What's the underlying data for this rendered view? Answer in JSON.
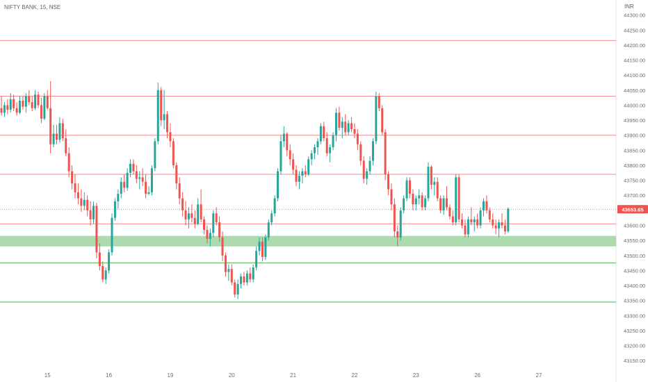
{
  "header": {
    "title": "NIFTY BANK, 15, NSE",
    "currency": "INR"
  },
  "colors": {
    "up": "#26a69a",
    "down": "#ef5350",
    "resistance": "#f28b8b",
    "support": "#4caf50",
    "zone": "#a5d6a7",
    "price_badge": "#ef5350",
    "axis_text": "#6a6d78"
  },
  "chart_data": {
    "type": "candlestick",
    "title": "NIFTY BANK, 15, NSE",
    "ylim": [
      43125,
      44350
    ],
    "y_ticks": [
      43150,
      43200,
      43250,
      43300,
      43350,
      43400,
      43450,
      43500,
      43550,
      43600,
      43650,
      43700,
      43750,
      43800,
      43850,
      43900,
      43950,
      44000,
      44050,
      44100,
      44150,
      44200,
      44250,
      44300
    ],
    "x_range": [
      0,
      187
    ],
    "x_ticks": [
      {
        "label": "15",
        "bar": 15
      },
      {
        "label": "16",
        "bar": 35
      },
      {
        "label": "19",
        "bar": 55
      },
      {
        "label": "20",
        "bar": 75
      },
      {
        "label": "21",
        "bar": 95
      },
      {
        "label": "22",
        "bar": 115
      },
      {
        "label": "23",
        "bar": 135
      },
      {
        "label": "26",
        "bar": 155
      },
      {
        "label": "27",
        "bar": 175
      }
    ],
    "current_price": 43653.65,
    "current_price_label": "43653.65",
    "resistance_levels": [
      44215,
      44030,
      43900,
      43770,
      43605
    ],
    "support_zone": [
      43530,
      43565
    ],
    "support_levels": [
      43475,
      43345
    ],
    "candles": [
      [
        43990,
        44030,
        43965,
        43975
      ],
      [
        43975,
        44010,
        43960,
        44000
      ],
      [
        44000,
        44020,
        43970,
        43985
      ],
      [
        43985,
        44040,
        43975,
        44020
      ],
      [
        44020,
        44035,
        43980,
        43990
      ],
      [
        43990,
        44010,
        43965,
        43975
      ],
      [
        43975,
        44030,
        43970,
        44015
      ],
      [
        44015,
        44030,
        43985,
        43995
      ],
      [
        43995,
        44040,
        43975,
        44030
      ],
      [
        44030,
        44050,
        44000,
        44010
      ],
      [
        44010,
        44030,
        43980,
        43990
      ],
      [
        43990,
        44050,
        43985,
        44035
      ],
      [
        44035,
        44045,
        43990,
        44000
      ],
      [
        44000,
        44025,
        43940,
        43955
      ],
      [
        43955,
        44040,
        43950,
        44030
      ],
      [
        44030,
        44050,
        43985,
        43990
      ],
      [
        43990,
        44080,
        43840,
        43870
      ],
      [
        43870,
        43935,
        43860,
        43905
      ],
      [
        43905,
        43935,
        43870,
        43885
      ],
      [
        43885,
        43960,
        43875,
        43940
      ],
      [
        43940,
        43955,
        43880,
        43890
      ],
      [
        43890,
        43920,
        43830,
        43840
      ],
      [
        43840,
        43860,
        43760,
        43780
      ],
      [
        43780,
        43800,
        43720,
        43740
      ],
      [
        43740,
        43770,
        43690,
        43710
      ],
      [
        43710,
        43740,
        43670,
        43690
      ],
      [
        43690,
        43720,
        43645,
        43665
      ],
      [
        43665,
        43710,
        43650,
        43685
      ],
      [
        43685,
        43700,
        43630,
        43650
      ],
      [
        43650,
        43680,
        43600,
        43620
      ],
      [
        43620,
        43680,
        43605,
        43665
      ],
      [
        43665,
        43675,
        43490,
        43510
      ],
      [
        43510,
        43540,
        43450,
        43465
      ],
      [
        43465,
        43480,
        43410,
        43420
      ],
      [
        43420,
        43460,
        43405,
        43450
      ],
      [
        43450,
        43520,
        43440,
        43510
      ],
      [
        43510,
        43640,
        43500,
        43625
      ],
      [
        43625,
        43690,
        43615,
        43680
      ],
      [
        43680,
        43720,
        43655,
        43705
      ],
      [
        43705,
        43760,
        43690,
        43745
      ],
      [
        43745,
        43770,
        43710,
        43725
      ],
      [
        43725,
        43790,
        43715,
        43775
      ],
      [
        43775,
        43820,
        43760,
        43805
      ],
      [
        43805,
        43820,
        43770,
        43780
      ],
      [
        43780,
        43800,
        43740,
        43755
      ],
      [
        43755,
        43780,
        43720,
        43760
      ],
      [
        43760,
        43790,
        43730,
        43745
      ],
      [
        43745,
        43770,
        43690,
        43705
      ],
      [
        43705,
        43730,
        43700,
        43710
      ],
      [
        43710,
        43800,
        43700,
        43790
      ],
      [
        43790,
        43890,
        43780,
        43880
      ],
      [
        43880,
        44075,
        43870,
        44050
      ],
      [
        44050,
        44060,
        43930,
        43950
      ],
      [
        43950,
        44050,
        43920,
        43970
      ],
      [
        43970,
        43980,
        43890,
        43910
      ],
      [
        43910,
        43940,
        43860,
        43880
      ],
      [
        43880,
        43890,
        43790,
        43800
      ],
      [
        43800,
        43810,
        43720,
        43740
      ],
      [
        43740,
        43760,
        43670,
        43690
      ],
      [
        43690,
        43710,
        43630,
        43650
      ],
      [
        43650,
        43680,
        43600,
        43620
      ],
      [
        43620,
        43660,
        43590,
        43640
      ],
      [
        43640,
        43670,
        43610,
        43625
      ],
      [
        43625,
        43650,
        43590,
        43605
      ],
      [
        43605,
        43690,
        43600,
        43670
      ],
      [
        43670,
        43720,
        43610,
        43620
      ],
      [
        43620,
        43630,
        43570,
        43585
      ],
      [
        43585,
        43600,
        43540,
        43555
      ],
      [
        43555,
        43590,
        43530,
        43575
      ],
      [
        43575,
        43650,
        43560,
        43640
      ],
      [
        43640,
        43660,
        43600,
        43610
      ],
      [
        43610,
        43630,
        43545,
        43560
      ],
      [
        43560,
        43580,
        43480,
        43500
      ],
      [
        43500,
        43510,
        43430,
        43445
      ],
      [
        43445,
        43470,
        43415,
        43455
      ],
      [
        43455,
        43470,
        43400,
        43410
      ],
      [
        43410,
        43420,
        43360,
        43370
      ],
      [
        43370,
        43420,
        43355,
        43405
      ],
      [
        43405,
        43440,
        43390,
        43430
      ],
      [
        43430,
        43445,
        43400,
        43410
      ],
      [
        43410,
        43450,
        43400,
        43440
      ],
      [
        43440,
        43460,
        43410,
        43420
      ],
      [
        43420,
        43470,
        43410,
        43460
      ],
      [
        43460,
        43530,
        43450,
        43515
      ],
      [
        43515,
        43560,
        43500,
        43545
      ],
      [
        43545,
        43560,
        43480,
        43495
      ],
      [
        43495,
        43570,
        43485,
        43560
      ],
      [
        43560,
        43620,
        43550,
        43610
      ],
      [
        43610,
        43650,
        43600,
        43640
      ],
      [
        43640,
        43700,
        43630,
        43690
      ],
      [
        43690,
        43790,
        43680,
        43780
      ],
      [
        43780,
        43900,
        43770,
        43880
      ],
      [
        43880,
        43930,
        43860,
        43905
      ],
      [
        43905,
        43910,
        43830,
        43850
      ],
      [
        43850,
        43870,
        43800,
        43820
      ],
      [
        43820,
        43840,
        43770,
        43785
      ],
      [
        43785,
        43800,
        43730,
        43745
      ],
      [
        43745,
        43780,
        43720,
        43765
      ],
      [
        43765,
        43790,
        43740,
        43780
      ],
      [
        43780,
        43800,
        43760,
        43770
      ],
      [
        43770,
        43830,
        43765,
        43820
      ],
      [
        43820,
        43850,
        43800,
        43840
      ],
      [
        43840,
        43870,
        43820,
        43860
      ],
      [
        43860,
        43890,
        43835,
        43880
      ],
      [
        43880,
        43940,
        43870,
        43930
      ],
      [
        43930,
        43945,
        43880,
        43890
      ],
      [
        43890,
        43910,
        43830,
        43840
      ],
      [
        43840,
        43870,
        43810,
        43860
      ],
      [
        43860,
        43910,
        43850,
        43900
      ],
      [
        43900,
        43990,
        43880,
        43975
      ],
      [
        43975,
        43995,
        43915,
        43925
      ],
      [
        43925,
        43960,
        43890,
        43945
      ],
      [
        43945,
        43970,
        43900,
        43910
      ],
      [
        43910,
        43950,
        43900,
        43940
      ],
      [
        43940,
        43960,
        43910,
        43920
      ],
      [
        43920,
        43940,
        43890,
        43905
      ],
      [
        43905,
        43920,
        43850,
        43870
      ],
      [
        43870,
        43880,
        43800,
        43815
      ],
      [
        43815,
        43830,
        43740,
        43755
      ],
      [
        43755,
        43790,
        43735,
        43780
      ],
      [
        43780,
        43830,
        43770,
        43815
      ],
      [
        43815,
        43890,
        43800,
        43880
      ],
      [
        43880,
        44045,
        43870,
        44030
      ],
      [
        44030,
        44040,
        43980,
        43990
      ],
      [
        43990,
        44000,
        43900,
        43910
      ],
      [
        43910,
        43920,
        43750,
        43770
      ],
      [
        43770,
        43780,
        43700,
        43720
      ],
      [
        43720,
        43740,
        43650,
        43670
      ],
      [
        43670,
        43690,
        43560,
        43580
      ],
      [
        43580,
        43600,
        43530,
        43560
      ],
      [
        43560,
        43660,
        43550,
        43650
      ],
      [
        43650,
        43700,
        43640,
        43690
      ],
      [
        43690,
        43760,
        43680,
        43750
      ],
      [
        43750,
        43760,
        43690,
        43705
      ],
      [
        43705,
        43720,
        43650,
        43670
      ],
      [
        43670,
        43700,
        43650,
        43690
      ],
      [
        43690,
        43720,
        43670,
        43700
      ],
      [
        43700,
        43710,
        43650,
        43660
      ],
      [
        43660,
        43700,
        43650,
        43690
      ],
      [
        43690,
        43810,
        43680,
        43795
      ],
      [
        43795,
        43800,
        43720,
        43735
      ],
      [
        43735,
        43760,
        43700,
        43745
      ],
      [
        43745,
        43760,
        43680,
        43690
      ],
      [
        43690,
        43700,
        43640,
        43650
      ],
      [
        43650,
        43700,
        43635,
        43690
      ],
      [
        43690,
        43730,
        43650,
        43660
      ],
      [
        43660,
        43670,
        43620,
        43630
      ],
      [
        43630,
        43650,
        43600,
        43610
      ],
      [
        43610,
        43770,
        43600,
        43760
      ],
      [
        43760,
        43770,
        43610,
        43620
      ],
      [
        43620,
        43640,
        43590,
        43600
      ],
      [
        43600,
        43620,
        43560,
        43570
      ],
      [
        43570,
        43630,
        43560,
        43620
      ],
      [
        43620,
        43660,
        43600,
        43610
      ],
      [
        43610,
        43630,
        43580,
        43620
      ],
      [
        43620,
        43640,
        43590,
        43600
      ],
      [
        43600,
        43660,
        43590,
        43650
      ],
      [
        43650,
        43690,
        43630,
        43680
      ],
      [
        43680,
        43700,
        43640,
        43650
      ],
      [
        43650,
        43660,
        43610,
        43620
      ],
      [
        43620,
        43640,
        43590,
        43600
      ],
      [
        43600,
        43620,
        43570,
        43590
      ],
      [
        43590,
        43620,
        43560,
        43610
      ],
      [
        43610,
        43640,
        43590,
        43600
      ],
      [
        43600,
        43620,
        43570,
        43580
      ],
      [
        43580,
        43660,
        43575,
        43655
      ]
    ]
  }
}
